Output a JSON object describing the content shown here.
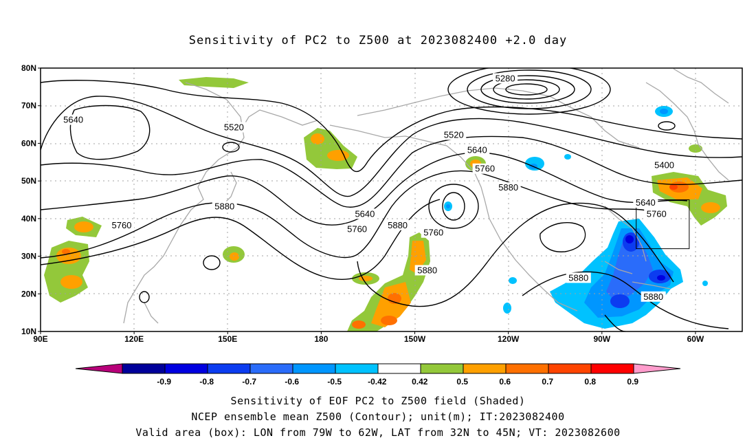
{
  "title": "Sensitivity of PC2 to Z500 at 2023082400 +2.0 day",
  "lat_ticks": [
    "80N",
    "70N",
    "60N",
    "50N",
    "40N",
    "30N",
    "20N",
    "10N"
  ],
  "lon_ticks": [
    "90E",
    "120E",
    "150E",
    "180",
    "150W",
    "120W",
    "90W",
    "60W"
  ],
  "contour_labels": [
    {
      "text": "5640",
      "lon": 100.5,
      "lat": 66
    },
    {
      "text": "5520",
      "lon": 152,
      "lat": 64
    },
    {
      "text": "5280",
      "lon": 239,
      "lat": 77
    },
    {
      "text": "5520",
      "lon": 222.5,
      "lat": 62
    },
    {
      "text": "5640",
      "lon": 230,
      "lat": 58
    },
    {
      "text": "5760",
      "lon": 232.5,
      "lat": 53
    },
    {
      "text": "5400",
      "lon": 290,
      "lat": 54
    },
    {
      "text": "5640",
      "lon": 284,
      "lat": 44
    },
    {
      "text": "5880",
      "lon": 240,
      "lat": 48
    },
    {
      "text": "5760",
      "lon": 287.5,
      "lat": 41
    },
    {
      "text": "5880",
      "lon": 149,
      "lat": 43
    },
    {
      "text": "5760",
      "lon": 116,
      "lat": 38
    },
    {
      "text": "5640",
      "lon": 194,
      "lat": 41
    },
    {
      "text": "5760",
      "lon": 191.5,
      "lat": 37
    },
    {
      "text": "5880",
      "lon": 204.5,
      "lat": 38
    },
    {
      "text": "5760",
      "lon": 216,
      "lat": 36
    },
    {
      "text": "5880",
      "lon": 214,
      "lat": 26
    },
    {
      "text": "5880",
      "lon": 262.5,
      "lat": 24
    },
    {
      "text": "5880",
      "lon": 286.5,
      "lat": 19
    }
  ],
  "colorbar": {
    "labels": [
      "-0.9",
      "-0.8",
      "-0.7",
      "-0.6",
      "-0.5",
      "-0.42",
      "0.42",
      "0.5",
      "0.6",
      "0.7",
      "0.8",
      "0.9"
    ],
    "colors": [
      "#00009a",
      "#0000e0",
      "#0c3cf0",
      "#2a6cfa",
      "#0096ff",
      "#00c2ff",
      "#ffffff",
      "#93c83a",
      "#ffa000",
      "#ff7000",
      "#ff4400",
      "#ff0000"
    ],
    "low_color": "#b8007a",
    "high_color": "#ff9ccc"
  },
  "valid_box": {
    "lon_min": -79,
    "lon_max": -62,
    "lat_min": 32,
    "lat_max": 45
  },
  "footer": [
    "Sensitivity of EOF PC2 to Z500 field (Shaded)",
    "NCEP ensemble mean Z500 (Contour); unit(m); IT:2023082400",
    "Valid area (box): LON from 79W to 62W, LAT from 32N to 45N; VT: 2023082600"
  ]
}
